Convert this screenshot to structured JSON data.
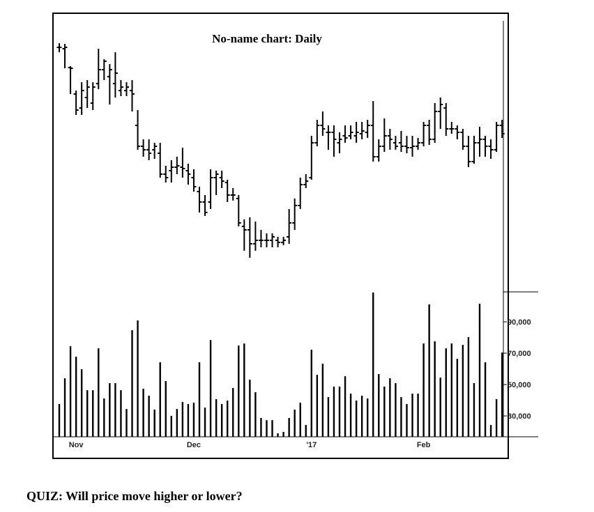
{
  "chart_data": [
    {
      "type": "ohlc",
      "title": "No-name chart:  Daily",
      "color": "#000000",
      "categories": [
        null,
        null,
        null,
        "Nov",
        null,
        null,
        null,
        null,
        null,
        null,
        null,
        null,
        null,
        null,
        null,
        null,
        null,
        null,
        null,
        null,
        null,
        null,
        null,
        null,
        "Dec",
        null,
        null,
        null,
        null,
        null,
        null,
        null,
        null,
        null,
        null,
        null,
        null,
        null,
        null,
        null,
        null,
        null,
        null,
        null,
        null,
        "'17",
        null,
        null,
        null,
        null,
        null,
        null,
        null,
        null,
        null,
        null,
        null,
        null,
        null,
        null,
        null,
        null,
        null,
        null,
        null,
        "Feb",
        null,
        null,
        null,
        null,
        null,
        null,
        null,
        null,
        null,
        null,
        null,
        null,
        null,
        null
      ],
      "open": [
        332,
        330,
        303,
        265,
        245,
        260,
        252,
        280,
        300,
        290,
        280,
        270,
        270,
        270,
        220,
        190,
        185,
        185,
        180,
        150,
        155,
        160,
        160,
        155,
        145,
        125,
        110,
        110,
        145,
        145,
        138,
        120,
        115,
        75,
        70,
        50,
        55,
        55,
        55,
        55,
        52,
        60,
        80,
        105,
        135,
        145,
        195,
        220,
        210,
        210,
        195,
        205,
        205,
        205,
        208,
        210,
        220,
        175,
        190,
        205,
        195,
        195,
        190,
        188,
        190,
        195,
        220,
        200,
        240,
        245,
        215,
        215,
        210,
        190,
        168,
        195,
        200,
        190,
        185,
        220
      ],
      "high": [
        338,
        337,
        305,
        270,
        282,
        285,
        282,
        330,
        315,
        308,
        325,
        285,
        282,
        285,
        242,
        200,
        200,
        195,
        195,
        162,
        170,
        175,
        188,
        165,
        157,
        132,
        120,
        157,
        155,
        155,
        142,
        130,
        120,
        85,
        88,
        82,
        70,
        65,
        65,
        60,
        60,
        100,
        115,
        145,
        150,
        205,
        228,
        240,
        220,
        220,
        210,
        220,
        220,
        225,
        225,
        228,
        255,
        200,
        230,
        215,
        205,
        212,
        205,
        205,
        202,
        225,
        228,
        252,
        260,
        252,
        225,
        220,
        215,
        205,
        205,
        218,
        205,
        200,
        225,
        228
      ],
      "low": [
        325,
        302,
        265,
        235,
        235,
        245,
        242,
        272,
        285,
        250,
        260,
        262,
        262,
        240,
        185,
        175,
        170,
        172,
        145,
        138,
        138,
        150,
        145,
        135,
        125,
        95,
        90,
        100,
        120,
        130,
        110,
        112,
        75,
        40,
        30,
        40,
        45,
        45,
        45,
        45,
        48,
        50,
        70,
        100,
        130,
        142,
        190,
        205,
        185,
        175,
        180,
        195,
        200,
        195,
        200,
        202,
        168,
        168,
        182,
        185,
        185,
        182,
        180,
        175,
        185,
        190,
        192,
        195,
        215,
        205,
        208,
        200,
        185,
        160,
        165,
        175,
        175,
        172,
        182,
        202
      ],
      "close": [
        332,
        332,
        302,
        242,
        270,
        275,
        275,
        300,
        312,
        300,
        295,
        275,
        275,
        265,
        190,
        185,
        180,
        190,
        150,
        145,
        160,
        162,
        158,
        150,
        132,
        110,
        95,
        145,
        150,
        140,
        120,
        120,
        80,
        70,
        50,
        55,
        55,
        55,
        60,
        52,
        55,
        80,
        105,
        135,
        140,
        195,
        220,
        215,
        210,
        200,
        200,
        202,
        210,
        210,
        212,
        220,
        175,
        190,
        205,
        200,
        190,
        190,
        188,
        190,
        195,
        220,
        200,
        240,
        250,
        215,
        215,
        210,
        190,
        168,
        195,
        200,
        190,
        185,
        220,
        208
      ],
      "ylim": [
        0,
        380
      ]
    },
    {
      "type": "bar",
      "color": "#000000",
      "values": [
        37600,
        54000,
        74400,
        67800,
        59800,
        46400,
        46400,
        73100,
        41100,
        50900,
        50900,
        46400,
        34400,
        84700,
        90900,
        47300,
        42900,
        34000,
        64200,
        52200,
        30000,
        34400,
        38900,
        37600,
        38400,
        64200,
        35300,
        78400,
        40700,
        37600,
        39800,
        47800,
        74900,
        76200,
        53100,
        45100,
        28700,
        27300,
        27300,
        18900,
        19800,
        28700,
        34000,
        38400,
        24200,
        72200,
        56200,
        63300,
        42000,
        48700,
        48700,
        55300,
        44200,
        39800,
        42900,
        41100,
        108700,
        56700,
        48700,
        54000,
        50900,
        42000,
        37600,
        44200,
        44200,
        76200,
        101100,
        77600,
        54400,
        73100,
        76200,
        66400,
        75300,
        80200,
        50900,
        101600,
        64200,
        24200,
        40700,
        70400
      ],
      "ylim": [
        16700,
        109100
      ],
      "yticks": [
        {
          "value": 30000,
          "label": "30,000"
        },
        {
          "value": 50000,
          "label": "50,000"
        },
        {
          "value": 70000,
          "label": "70,000"
        },
        {
          "value": 90000,
          "label": "90,000"
        }
      ]
    }
  ],
  "caption": "QUIZ:  Will price move higher or lower?"
}
